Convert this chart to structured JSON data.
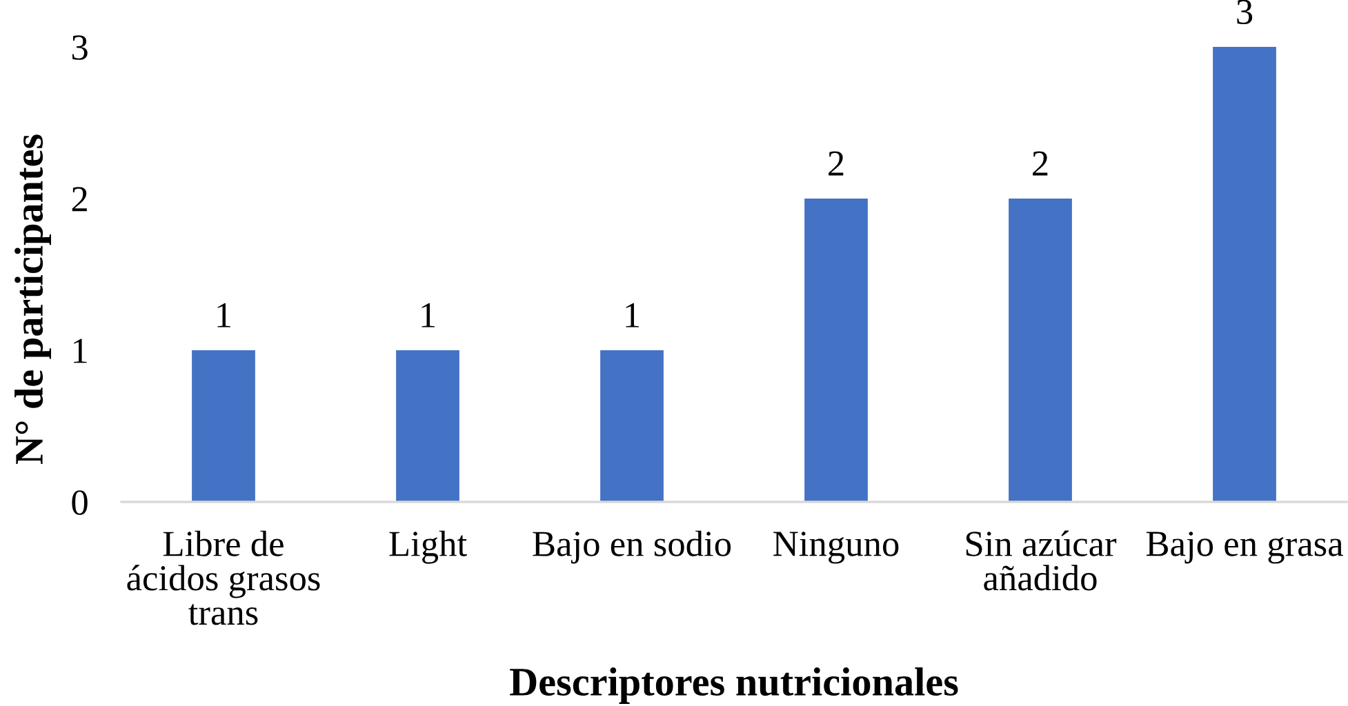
{
  "chart_data": {
    "type": "bar",
    "xlabel": "Descriptores nutricionales",
    "ylabel": "N° de participantes",
    "categories": [
      "Libre de\nácidos grasos\ntrans",
      "Light",
      "Bajo en sodio",
      "Ninguno",
      "Sin azúcar\nañadido",
      "Bajo en grasa"
    ],
    "values": [
      1,
      1,
      1,
      2,
      2,
      3
    ],
    "color": "#4472c4",
    "ylim": [
      0,
      3
    ],
    "yticks": [
      0,
      1,
      2,
      3
    ],
    "grid": false,
    "data_labels": true
  }
}
